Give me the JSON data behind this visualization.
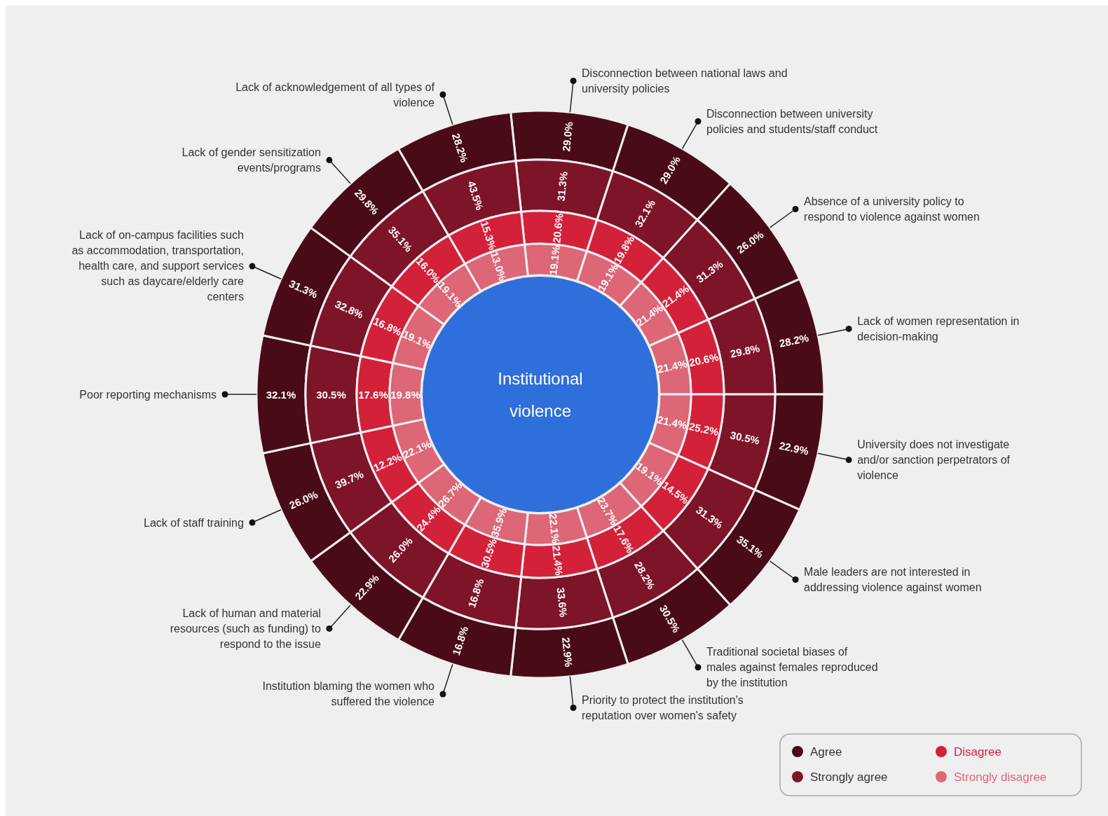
{
  "chart_data": {
    "type": "other",
    "title": "Institutional violence",
    "categories": [
      "Disconnection between national laws and university policies",
      "Disconnection between university policies and students/staff conduct",
      "Absence of a university policy to respond to violence against women",
      "Lack of women representation in decision-making",
      "University does not investigate and/or sanction perpetrators of violence",
      "Male leaders are not interested in addressing violence against women",
      "Traditional societal biases of males against females reproduced by the institution",
      "Priority to protect the institution's reputation over women's safety",
      "Institution blaming the women who suffered the violence",
      "Lack of human and material resources (such as funding) to respond to the issue",
      "Lack of staff training",
      "Poor reporting mechanisms",
      "Lack of on-campus facilities such as accommodation, transportation, health care, and support services such as daycare/elderly care centers",
      "Lack of gender sensitization events/programs",
      "Lack of acknowledgement of all types of violence"
    ],
    "series": [
      {
        "name": "Agree",
        "color": "#4a0b18",
        "values": [
          29.0,
          29.0,
          26.0,
          28.2,
          22.9,
          35.1,
          30.5,
          22.9,
          16.8,
          22.9,
          26.0,
          32.1,
          31.3,
          29.8,
          28.2
        ],
        "value_labels": [
          "29.0%",
          "29.0%",
          "26.0%",
          "28.2%",
          "22.9%",
          "35.1%",
          "30.5%",
          "22.9%",
          "16.8%",
          "22.9%",
          "26.0%",
          "32.1%",
          "31.3%",
          "29.8%",
          "28.2%"
        ]
      },
      {
        "name": "Strongly agree",
        "color": "#7e1428",
        "values": [
          31.3,
          32.1,
          31.3,
          29.8,
          30.5,
          31.3,
          28.2,
          33.6,
          16.8,
          26.0,
          39.7,
          30.5,
          32.8,
          35.1,
          43.5
        ],
        "value_labels": [
          "31.3%",
          "32.1%",
          "31.3%",
          "29.8%",
          "30.5%",
          "31.3%",
          "28.2%",
          "33.6%",
          "16.8%",
          "26.0%",
          "39.7%",
          "30.5%",
          "32.8%",
          "35.1%",
          "43.5%"
        ]
      },
      {
        "name": "Disagree",
        "color": "#d4213a",
        "values": [
          20.6,
          19.8,
          21.4,
          20.6,
          25.2,
          14.5,
          17.6,
          21.4,
          30.5,
          24.4,
          12.2,
          17.6,
          16.8,
          16.0,
          15.3
        ],
        "value_labels": [
          "20.6%",
          "19.8%",
          "21.4%",
          "20.6%",
          "25.2%",
          "14.5%",
          "17.6%",
          "21.4%",
          "30.5%",
          "24.4%",
          "12.2%",
          "17.6%",
          "16.8%",
          "16.0%",
          "15.3%"
        ]
      },
      {
        "name": "Strongly disagree",
        "color": "#dd6677",
        "values": [
          19.1,
          19.1,
          21.4,
          21.4,
          21.4,
          19.1,
          23.7,
          22.1,
          35.9,
          26.7,
          22.1,
          19.8,
          19.1,
          19.1,
          13.0
        ],
        "value_labels": [
          "19.1%",
          "19.1%",
          "21.4%",
          "21.4%",
          "21.4%",
          "19.1%",
          "23.7%",
          "22.1%",
          "35.9%",
          "26.7%",
          "22.1%",
          "19.8%",
          "19.1%",
          "19.1%",
          "13.0%"
        ]
      }
    ],
    "legend": "bottom right"
  }
}
